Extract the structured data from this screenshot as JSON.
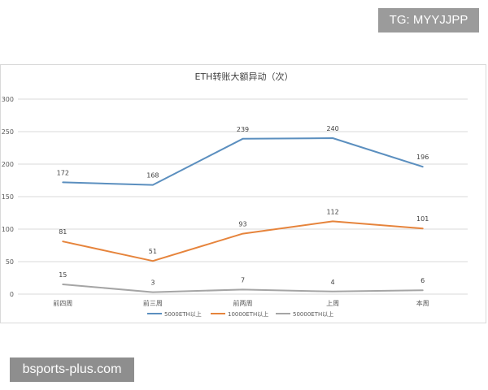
{
  "watermarks": {
    "top": "TG: MYYJJPP",
    "bottom": "bsports-plus.com"
  },
  "chart_data": {
    "type": "line",
    "title": "ETH转账大额异动（次）",
    "categories": [
      "前四周",
      "前三周",
      "前两周",
      "上周",
      "本周"
    ],
    "ylim": [
      0,
      300
    ],
    "yticks": [
      0,
      50,
      100,
      150,
      200,
      250,
      300
    ],
    "grid": true,
    "legend_position": "bottom",
    "series": [
      {
        "name": "5000ETH以上",
        "color": "#5b8fbf",
        "values": [
          172,
          168,
          239,
          240,
          196
        ]
      },
      {
        "name": "10000ETH以上",
        "color": "#e6843c",
        "values": [
          81,
          51,
          93,
          112,
          101
        ]
      },
      {
        "name": "50000ETH以上",
        "color": "#a5a5a5",
        "values": [
          15,
          3,
          7,
          4,
          6
        ]
      }
    ]
  }
}
